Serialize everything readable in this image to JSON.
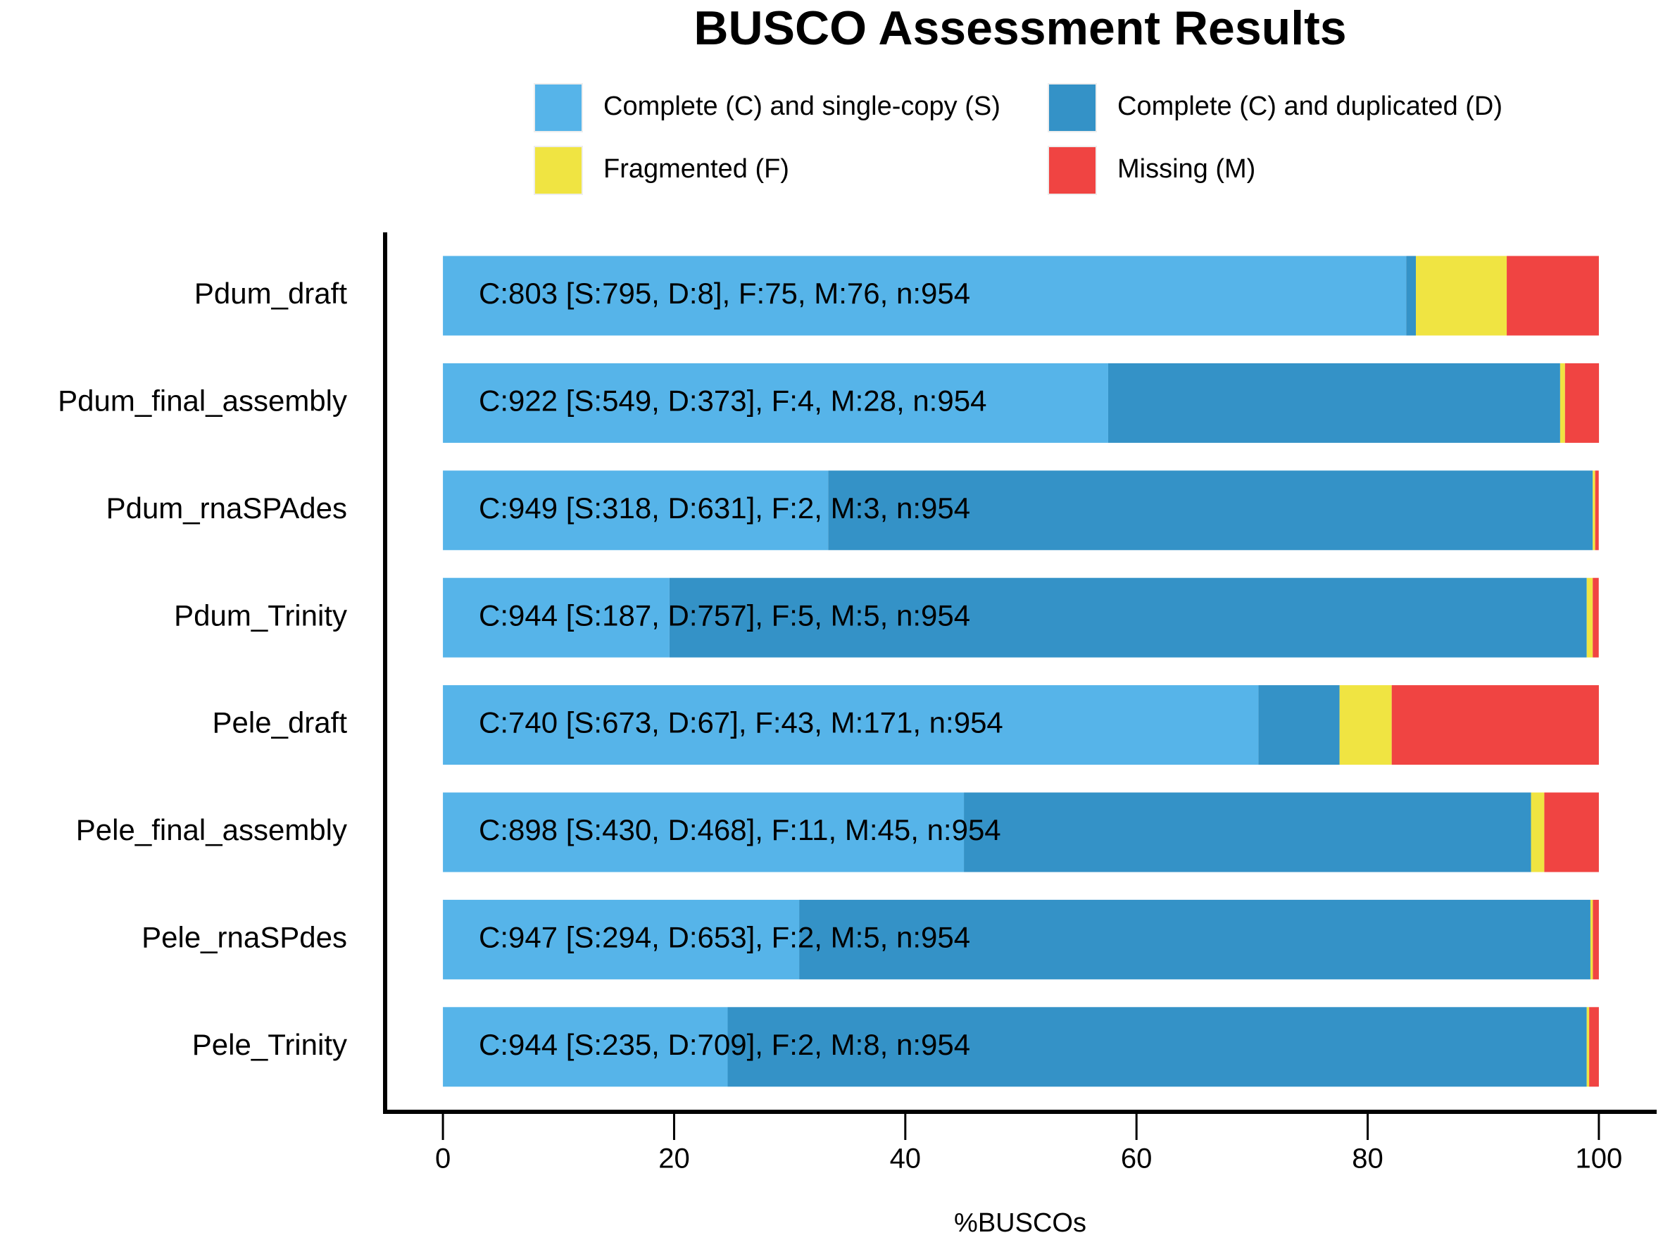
{
  "chart_data": {
    "type": "stacked_barh",
    "title": "BUSCO Assessment Results",
    "x_label": "%BUSCOs",
    "categories": [
      "Pdum_draft",
      "Pdum_final_assembly",
      "Pdum_rnaSPAdes",
      "Pdum_Trinity",
      "Pele_draft",
      "Pele_final_assembly",
      "Pele_rnaSPdes",
      "Pele_Trinity"
    ],
    "series": [
      {
        "name": "Complete (C) and single-copy (S)",
        "color": "#56b4e9",
        "values": [
          83.33,
          57.55,
          33.33,
          19.6,
          70.55,
          45.07,
          30.82,
          24.63
        ]
      },
      {
        "name": "Complete (C) and duplicated (D)",
        "color": "#3492c7",
        "values": [
          0.84,
          39.1,
          66.14,
          79.35,
          7.02,
          49.06,
          68.45,
          74.32
        ]
      },
      {
        "name": "Fragmented (F)",
        "color": "#f0e442",
        "values": [
          7.86,
          0.42,
          0.21,
          0.52,
          4.51,
          1.15,
          0.21,
          0.21
        ]
      },
      {
        "name": "Missing (M)",
        "color": "#f04442",
        "values": [
          7.97,
          2.94,
          0.31,
          0.52,
          17.92,
          4.72,
          0.52,
          0.84
        ]
      }
    ],
    "bar_annotations": [
      "C:803 [S:795, D:8], F:75, M:76, n:954",
      "C:922 [S:549, D:373], F:4, M:28, n:954",
      "C:949 [S:318, D:631], F:2, M:3, n:954",
      "C:944 [S:187, D:757], F:5, M:5, n:954",
      "C:740 [S:673, D:67], F:43, M:171, n:954",
      "C:898 [S:430, D:468], F:11, M:45, n:954",
      "C:947 [S:294, D:653], F:2, M:5, n:954",
      "C:944 [S:235, D:709], F:2, M:8, n:954"
    ],
    "xlim": [
      -5,
      105
    ],
    "xticks": [
      0,
      20,
      40,
      60,
      80,
      100
    ]
  }
}
